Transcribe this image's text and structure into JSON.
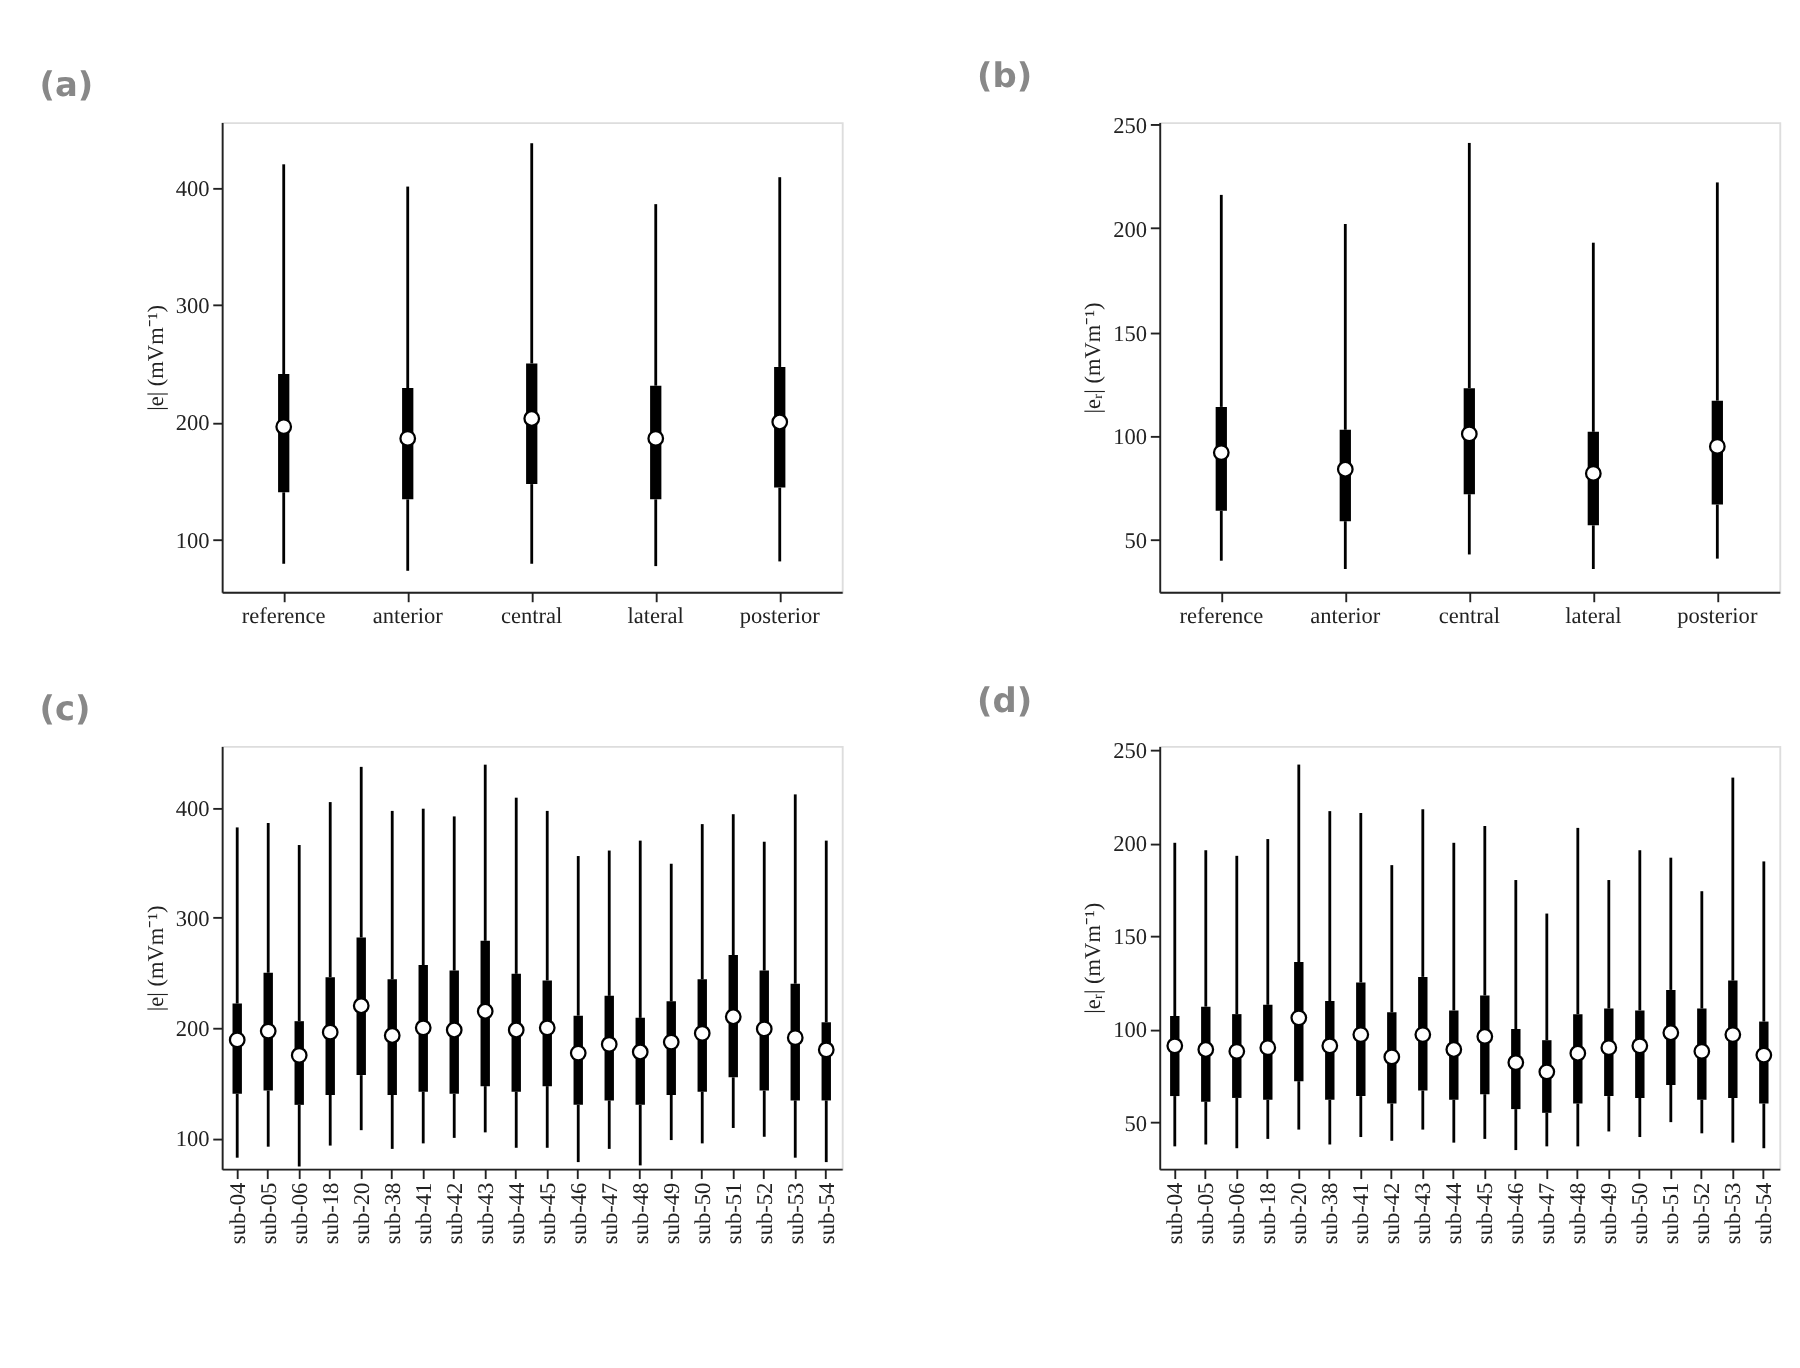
{
  "chart_data": [
    {
      "type": "box",
      "title": "(a)",
      "ylabel": "|e| (mVm⁻¹)",
      "categories": [
        "reference",
        "anterior",
        "central",
        "lateral",
        "posterior"
      ],
      "ylim": [
        55,
        456
      ],
      "yticks": [
        100,
        200,
        300,
        400
      ],
      "grid": false,
      "series": [
        {
          "color": "#000000",
          "boxes": [
            {
              "low": 79,
              "q1": 140,
              "median": 196,
              "q3": 241,
              "high": 420
            },
            {
              "low": 73,
              "q1": 134,
              "median": 186,
              "q3": 229,
              "high": 401
            },
            {
              "low": 79,
              "q1": 147,
              "median": 203,
              "q3": 250,
              "high": 438
            },
            {
              "low": 77,
              "q1": 134,
              "median": 186,
              "q3": 231,
              "high": 386
            },
            {
              "low": 81,
              "q1": 144,
              "median": 200,
              "q3": 247,
              "high": 409
            }
          ]
        }
      ]
    },
    {
      "type": "box",
      "title": "(b)",
      "ylabel": "|eᵣ| (mVm⁻¹)",
      "categories": [
        "reference",
        "anterior",
        "central",
        "lateral",
        "posterior"
      ],
      "ylim": [
        25,
        251
      ],
      "yticks": [
        50,
        100,
        150,
        200,
        250
      ],
      "grid": false,
      "series": [
        {
          "color": "#000000",
          "boxes": [
            {
              "low": 40,
              "q1": 64,
              "median": 92,
              "q3": 114,
              "high": 216
            },
            {
              "low": 36,
              "q1": 59,
              "median": 84,
              "q3": 103,
              "high": 202
            },
            {
              "low": 43,
              "q1": 72,
              "median": 101,
              "q3": 123,
              "high": 241
            },
            {
              "low": 36,
              "q1": 57,
              "median": 82,
              "q3": 102,
              "high": 193
            },
            {
              "low": 41,
              "q1": 67,
              "median": 95,
              "q3": 117,
              "high": 222
            }
          ]
        }
      ]
    },
    {
      "type": "box",
      "title": "(c)",
      "ylabel": "|e| (mVm⁻¹)",
      "categories": [
        "sub-04",
        "sub-05",
        "sub-06",
        "sub-18",
        "sub-20",
        "sub-38",
        "sub-41",
        "sub-42",
        "sub-43",
        "sub-44",
        "sub-45",
        "sub-46",
        "sub-47",
        "sub-48",
        "sub-49",
        "sub-50",
        "sub-51",
        "sub-52",
        "sub-53",
        "sub-54"
      ],
      "ylim": [
        72,
        456
      ],
      "yticks": [
        100,
        200,
        300,
        400
      ],
      "grid": false,
      "series": [
        {
          "color": "#000000",
          "boxes": [
            {
              "low": 82,
              "q1": 140,
              "median": 189,
              "q3": 222,
              "high": 382
            },
            {
              "low": 92,
              "q1": 143,
              "median": 197,
              "q3": 250,
              "high": 386
            },
            {
              "low": 74,
              "q1": 130,
              "median": 175,
              "q3": 206,
              "high": 366
            },
            {
              "low": 93,
              "q1": 139,
              "median": 196,
              "q3": 246,
              "high": 405
            },
            {
              "low": 107,
              "q1": 157,
              "median": 220,
              "q3": 282,
              "high": 437
            },
            {
              "low": 90,
              "q1": 139,
              "median": 193,
              "q3": 244,
              "high": 397
            },
            {
              "low": 95,
              "q1": 142,
              "median": 200,
              "q3": 257,
              "high": 399
            },
            {
              "low": 100,
              "q1": 140,
              "median": 198,
              "q3": 252,
              "high": 392
            },
            {
              "low": 105,
              "q1": 147,
              "median": 215,
              "q3": 279,
              "high": 439
            },
            {
              "low": 91,
              "q1": 142,
              "median": 198,
              "q3": 249,
              "high": 409
            },
            {
              "low": 91,
              "q1": 147,
              "median": 200,
              "q3": 243,
              "high": 397
            },
            {
              "low": 78,
              "q1": 130,
              "median": 177,
              "q3": 211,
              "high": 356
            },
            {
              "low": 90,
              "q1": 134,
              "median": 185,
              "q3": 229,
              "high": 361
            },
            {
              "low": 75,
              "q1": 130,
              "median": 178,
              "q3": 209,
              "high": 370
            },
            {
              "low": 98,
              "q1": 139,
              "median": 187,
              "q3": 224,
              "high": 349
            },
            {
              "low": 95,
              "q1": 142,
              "median": 195,
              "q3": 244,
              "high": 385
            },
            {
              "low": 109,
              "q1": 155,
              "median": 210,
              "q3": 266,
              "high": 394
            },
            {
              "low": 101,
              "q1": 143,
              "median": 199,
              "q3": 252,
              "high": 369
            },
            {
              "low": 82,
              "q1": 134,
              "median": 191,
              "q3": 240,
              "high": 412
            },
            {
              "low": 78,
              "q1": 134,
              "median": 180,
              "q3": 205,
              "high": 370
            }
          ]
        }
      ]
    },
    {
      "type": "box",
      "title": "(d)",
      "ylabel": "|eᵣ| (mVm⁻¹)",
      "categories": [
        "sub-04",
        "sub-05",
        "sub-06",
        "sub-18",
        "sub-20",
        "sub-38",
        "sub-41",
        "sub-42",
        "sub-43",
        "sub-44",
        "sub-45",
        "sub-46",
        "sub-47",
        "sub-48",
        "sub-49",
        "sub-50",
        "sub-51",
        "sub-52",
        "sub-53",
        "sub-54"
      ],
      "ylim": [
        25,
        252
      ],
      "yticks": [
        50,
        100,
        150,
        200,
        250
      ],
      "grid": false,
      "series": [
        {
          "color": "#000000",
          "boxes": [
            {
              "low": 37,
              "q1": 64,
              "median": 91,
              "q3": 107,
              "high": 200
            },
            {
              "low": 38,
              "q1": 61,
              "median": 89,
              "q3": 112,
              "high": 196
            },
            {
              "low": 36,
              "q1": 63,
              "median": 88,
              "q3": 108,
              "high": 193
            },
            {
              "low": 41,
              "q1": 62,
              "median": 90,
              "q3": 113,
              "high": 202
            },
            {
              "low": 46,
              "q1": 72,
              "median": 106,
              "q3": 136,
              "high": 242
            },
            {
              "low": 38,
              "q1": 62,
              "median": 91,
              "q3": 115,
              "high": 217
            },
            {
              "low": 42,
              "q1": 64,
              "median": 97,
              "q3": 125,
              "high": 216
            },
            {
              "low": 40,
              "q1": 60,
              "median": 85,
              "q3": 109,
              "high": 188
            },
            {
              "low": 46,
              "q1": 67,
              "median": 97,
              "q3": 128,
              "high": 218
            },
            {
              "low": 39,
              "q1": 62,
              "median": 89,
              "q3": 110,
              "high": 200
            },
            {
              "low": 41,
              "q1": 65,
              "median": 96,
              "q3": 118,
              "high": 209
            },
            {
              "low": 35,
              "q1": 57,
              "median": 82,
              "q3": 100,
              "high": 180
            },
            {
              "low": 37,
              "q1": 55,
              "median": 77,
              "q3": 94,
              "high": 162
            },
            {
              "low": 37,
              "q1": 60,
              "median": 87,
              "q3": 108,
              "high": 208
            },
            {
              "low": 45,
              "q1": 64,
              "median": 90,
              "q3": 111,
              "high": 180
            },
            {
              "low": 42,
              "q1": 63,
              "median": 91,
              "q3": 110,
              "high": 196
            },
            {
              "low": 50,
              "q1": 70,
              "median": 98,
              "q3": 121,
              "high": 192
            },
            {
              "low": 44,
              "q1": 62,
              "median": 88,
              "q3": 111,
              "high": 174
            },
            {
              "low": 39,
              "q1": 63,
              "median": 97,
              "q3": 126,
              "high": 235
            },
            {
              "low": 36,
              "q1": 60,
              "median": 86,
              "q3": 104,
              "high": 190
            }
          ]
        }
      ]
    }
  ]
}
